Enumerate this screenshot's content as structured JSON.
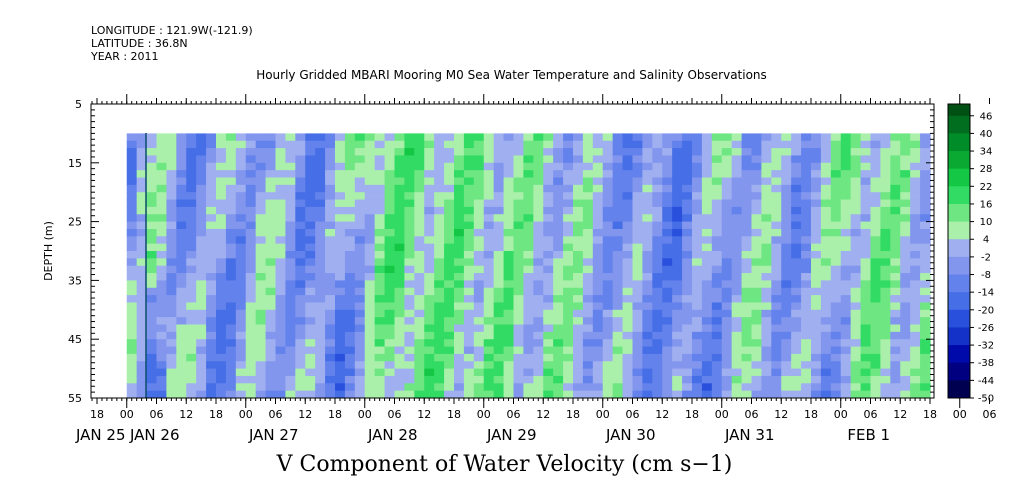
{
  "header": {
    "longitude": "LONGITUDE : 121.9W(-121.9)",
    "latitude": "LATITUDE : 36.8N",
    "year": "YEAR : 2011"
  },
  "chart_data": {
    "type": "heatmap",
    "title": "Hourly Gridded MBARI Mooring M0 Sea Water Temperature and Salinity Observations",
    "variable_title": "V Component of Water Velocity (cm s−1)",
    "ylabel": "DEPTH (m)",
    "y_axis": {
      "range": [
        5,
        55
      ],
      "inverted": true,
      "tick_labels": [
        "5",
        "15",
        "25",
        "35",
        "45",
        "55"
      ]
    },
    "x_axis": {
      "range_hours_labels": [
        "JAN 25 18",
        "FEB 1 18"
      ],
      "hour_tick_labels": [
        "18",
        "00",
        "06",
        "12",
        "18",
        "00",
        "06",
        "12",
        "18",
        "00",
        "06",
        "12",
        "18",
        "00",
        "06",
        "12",
        "18",
        "00",
        "06",
        "12",
        "18",
        "00",
        "06",
        "12",
        "18",
        "00",
        "06",
        "12",
        "18",
        "00",
        "06",
        "12",
        "18"
      ],
      "day_labels": [
        "JAN 25",
        "JAN 26",
        "JAN 27",
        "JAN 28",
        "JAN 29",
        "JAN 30",
        "JAN 31",
        "FEB  1"
      ]
    },
    "data_extent": {
      "depth_range": [
        10,
        55
      ],
      "start": "JAN 26 00",
      "end": "FEB 1 18"
    },
    "colorbar": {
      "range": [
        -50,
        50
      ],
      "labels": [
        "46",
        "40",
        "34",
        "28",
        "22",
        "16",
        "10",
        "4",
        "-2",
        "-8",
        "-14",
        "-20",
        "-26",
        "-32",
        "-38",
        "-44",
        "-50"
      ]
    },
    "approx_velocity_pattern_cm_s": {
      "time_labels": [
        "JAN 26 00",
        "JAN 26 12",
        "JAN 27 00",
        "JAN 27 12",
        "JAN 28 00",
        "JAN 28 12",
        "JAN 29 00",
        "JAN 29 12",
        "JAN 30 00",
        "JAN 30 12",
        "JAN 31 00",
        "JAN 31 12",
        "FEB 1 00",
        "FEB 1 12"
      ],
      "mean_v": [
        6,
        -8,
        2,
        -10,
        12,
        10,
        8,
        4,
        -4,
        -10,
        4,
        -6,
        10,
        4
      ]
    }
  }
}
